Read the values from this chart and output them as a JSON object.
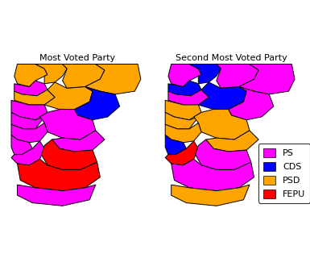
{
  "title_left": "Most Voted Party",
  "title_right": "Second Most Voted Party",
  "parties": [
    "PS",
    "CDS",
    "PSD",
    "FEPU"
  ],
  "colors": {
    "PS": "#FF00FF",
    "CDS": "#0000FF",
    "PSD": "#FFA500",
    "FEPU": "#FF0000"
  },
  "background": "#FFFFFF",
  "title_fontsize": 8,
  "legend_fontsize": 8,
  "most_voted": {
    "Viana do Castelo": "PSD",
    "Braga": "PSD",
    "Vila Real": "PSD",
    "Braganca": "PSD",
    "Porto": "PS",
    "Aveiro": "PSD",
    "Viseu": "PSD",
    "Guarda": "CDS",
    "Coimbra": "PS",
    "Leiria": "PS",
    "Castelo Branco": "PS",
    "Santarem": "PS",
    "Portalegre": "PS",
    "Lisboa": "PS",
    "Setubal": "PS",
    "Evora": "FEPU",
    "Beja": "FEPU",
    "Faro": "PS"
  },
  "second_voted": {
    "Viana do Castelo": "PS",
    "Braga": "CDS",
    "Vila Real": "PS",
    "Braganca": "PS",
    "Porto": "CDS",
    "Aveiro": "PS",
    "Viseu": "CDS",
    "Guarda": "PS",
    "Coimbra": "PSD",
    "Leiria": "PSD",
    "Castelo Branco": "PSD",
    "Santarem": "PSD",
    "Portalegre": "PSD",
    "Lisboa": "CDS",
    "Setubal": "FEPU",
    "Evora": "PS",
    "Beja": "PS",
    "Faro": "PSD"
  }
}
